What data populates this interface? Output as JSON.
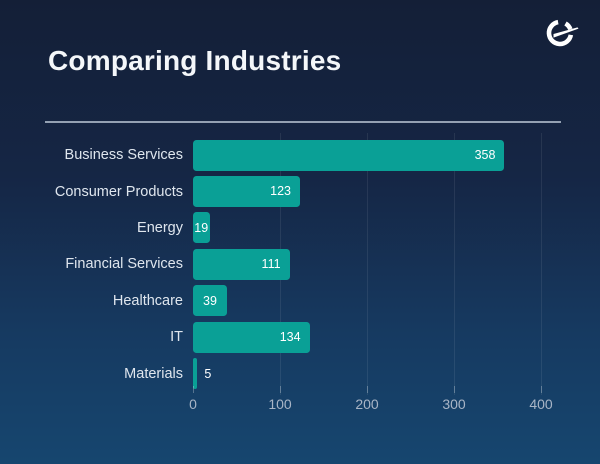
{
  "page": {
    "title": "Comparing Industries"
  },
  "logo": {
    "icon": "brand-ring-swoosh-icon",
    "color": "#ffffff"
  },
  "chart_data": {
    "type": "bar",
    "orientation": "horizontal",
    "title": "Comparing Industries",
    "categories": [
      "Business Services",
      "Consumer Products",
      "Energy",
      "Financial Services",
      "Healthcare",
      "IT",
      "Materials"
    ],
    "values": [
      358,
      123,
      19,
      111,
      39,
      134,
      5
    ],
    "xlabel": "",
    "ylabel": "",
    "xlim": [
      0,
      400
    ],
    "x_ticks": [
      0,
      100,
      200,
      300,
      400
    ],
    "bar_color": "#0aa096",
    "value_label_color": "#ffffff",
    "grid": "vertical-only",
    "legend": "none",
    "background": "navy-gradient"
  }
}
